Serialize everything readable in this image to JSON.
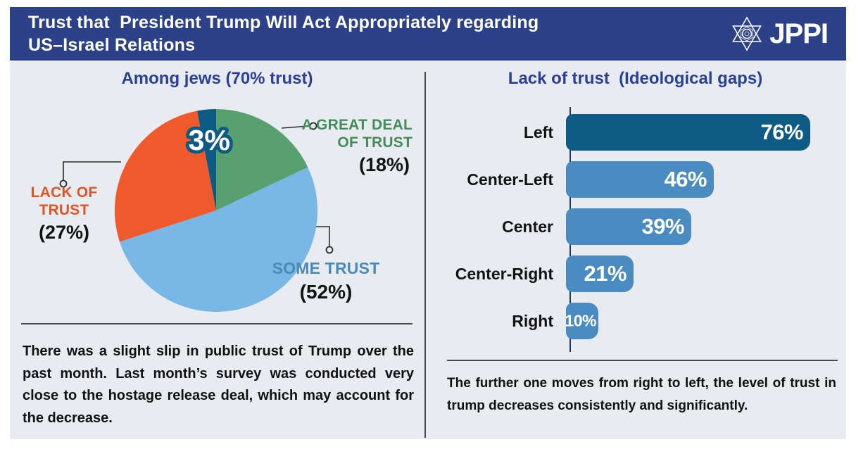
{
  "header": {
    "title_line1": "Trust that  President Trump Will Act Appropriately regarding",
    "title_line2": "US–Israel Relations",
    "logo_text": "JPPI",
    "bg_color": "#2c4187"
  },
  "left_panel": {
    "title": "Among jews (70% trust)",
    "note": "There was a slight slip in public trust of Trump over the past month. Last month’s survey was conducted very close to the hostage release deal, which may account for the decrease."
  },
  "right_panel": {
    "title": "Lack of trust  (Ideological gaps)",
    "note": "The further one moves from right to left, the level of trust in trump decreases consistently and significantly."
  },
  "callouts": {
    "great_deal": {
      "line1": "A GREAT DEAL",
      "line2": "OF TRUST",
      "pct": "(18%)",
      "color": "#458c5c"
    },
    "lack": {
      "line1": "LACK OF",
      "line2": "TRUST",
      "pct": "(27%)",
      "color": "#df5426"
    },
    "some": {
      "line1": "SOME TRUST",
      "pct": "(52%)",
      "color": "#4a8ab8"
    }
  },
  "chart_data": [
    {
      "type": "pie",
      "title": "Among jews (70% trust)",
      "start_angle_deg": 0,
      "direction": "clockwise",
      "slices": [
        {
          "name": "a-great-deal-of-trust",
          "label": "A GREAT DEAL OF TRUST",
          "value": 18,
          "color": "#58a06f"
        },
        {
          "name": "some-trust",
          "label": "SOME TRUST",
          "value": 52,
          "color": "#79b7e6"
        },
        {
          "name": "lack-of-trust",
          "label": "LACK OF TRUST",
          "value": 27,
          "color": "#ee5a2b"
        },
        {
          "name": "no-trust-small",
          "label": "3%",
          "value": 3,
          "color": "#0d5a85"
        }
      ],
      "inner_label": {
        "text": "3%",
        "x": 140,
        "y": 62,
        "fill": "#ffffff",
        "stroke": "#0d5a85"
      }
    },
    {
      "type": "bar",
      "orientation": "horizontal",
      "title": "Lack of trust (Ideological gaps)",
      "categories": [
        "Left",
        "Center-Left",
        "Center",
        "Center-Right",
        "Right"
      ],
      "values": [
        76,
        46,
        39,
        21,
        10
      ],
      "value_labels": [
        "76%",
        "46%",
        "39%",
        "21%",
        "10%"
      ],
      "bar_colors": [
        "#0d5a85",
        "#4a8cc2",
        "#4a8cc2",
        "#4a8cc2",
        "#4a8cc2"
      ],
      "xlim": [
        0,
        80
      ],
      "grid": false,
      "legend": false
    }
  ]
}
